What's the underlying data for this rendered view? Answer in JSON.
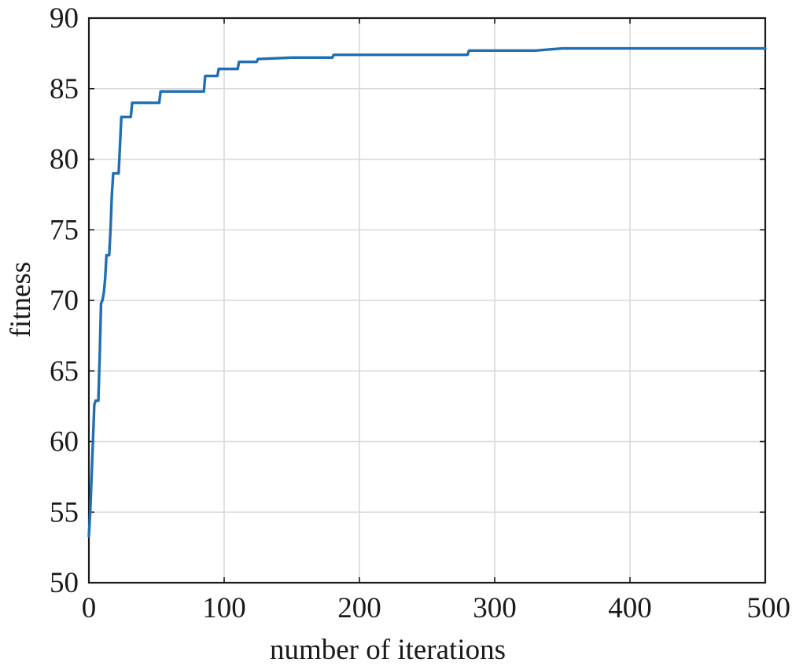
{
  "chart_data": {
    "type": "line",
    "title": "",
    "xlabel": "number of iterations",
    "ylabel": "fitness",
    "xlim": [
      0,
      500
    ],
    "ylim": [
      50,
      90
    ],
    "x_ticks": [
      0,
      100,
      200,
      300,
      400,
      500
    ],
    "y_ticks": [
      50,
      55,
      60,
      65,
      70,
      75,
      80,
      85,
      90
    ],
    "grid": true,
    "line_style": "step",
    "series": [
      {
        "color": "#1f6fb2",
        "points": [
          [
            0,
            53.3
          ],
          [
            1,
            55.0
          ],
          [
            2,
            57.5
          ],
          [
            3,
            60.0
          ],
          [
            4,
            62.6
          ],
          [
            5,
            62.9
          ],
          [
            7,
            62.9
          ],
          [
            8,
            66.0
          ],
          [
            9,
            69.8
          ],
          [
            10,
            70.0
          ],
          [
            11,
            70.5
          ],
          [
            12,
            71.5
          ],
          [
            13,
            73.2
          ],
          [
            14,
            73.2
          ],
          [
            15,
            73.2
          ],
          [
            16,
            75.0
          ],
          [
            17,
            77.5
          ],
          [
            18,
            79.0
          ],
          [
            22,
            79.0
          ],
          [
            23,
            81.0
          ],
          [
            24,
            83.0
          ],
          [
            31,
            83.0
          ],
          [
            32,
            84.0
          ],
          [
            52,
            84.0
          ],
          [
            53,
            84.8
          ],
          [
            85,
            84.8
          ],
          [
            86,
            85.9
          ],
          [
            95,
            85.9
          ],
          [
            96,
            86.4
          ],
          [
            110,
            86.4
          ],
          [
            111,
            86.9
          ],
          [
            124,
            86.9
          ],
          [
            125,
            87.1
          ],
          [
            150,
            87.2
          ],
          [
            180,
            87.2
          ],
          [
            181,
            87.4
          ],
          [
            280,
            87.4
          ],
          [
            281,
            87.7
          ],
          [
            330,
            87.7
          ],
          [
            350,
            87.85
          ],
          [
            500,
            87.85
          ]
        ]
      }
    ]
  }
}
